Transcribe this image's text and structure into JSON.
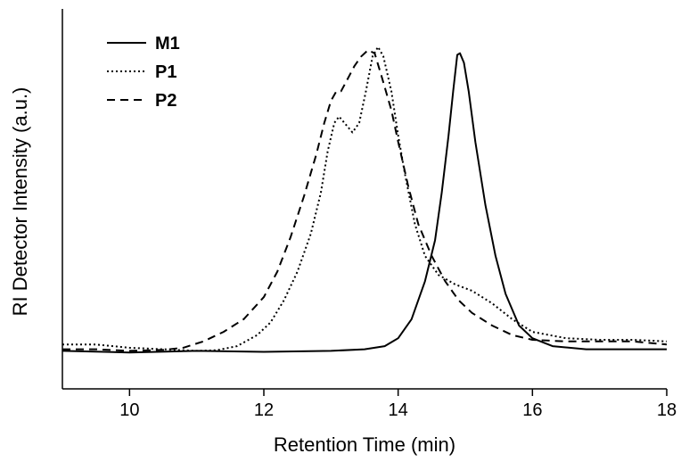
{
  "chart_data": {
    "type": "line",
    "title": "",
    "xlabel": "Retention Time (min)",
    "ylabel": "RI Detector Intensity (a.u.)",
    "xlim": [
      9,
      18
    ],
    "ylim": [
      -0.12,
      1.08
    ],
    "x_ticks": [
      "10",
      "12",
      "14",
      "16",
      "18"
    ],
    "y_ticks": [],
    "grid": false,
    "legend_position": "top-left",
    "series": [
      {
        "name": "M1",
        "style": "solid",
        "color": "#000000",
        "points": [
          [
            9,
            0.0
          ],
          [
            10,
            -0.005
          ],
          [
            11,
            0.0
          ],
          [
            12,
            -0.003
          ],
          [
            13,
            0.0
          ],
          [
            13.5,
            0.005
          ],
          [
            13.8,
            0.015
          ],
          [
            14.0,
            0.04
          ],
          [
            14.2,
            0.1
          ],
          [
            14.4,
            0.22
          ],
          [
            14.55,
            0.35
          ],
          [
            14.65,
            0.5
          ],
          [
            14.75,
            0.68
          ],
          [
            14.82,
            0.82
          ],
          [
            14.88,
            0.935
          ],
          [
            14.92,
            0.94
          ],
          [
            14.98,
            0.91
          ],
          [
            15.05,
            0.82
          ],
          [
            15.15,
            0.66
          ],
          [
            15.3,
            0.46
          ],
          [
            15.45,
            0.3
          ],
          [
            15.6,
            0.18
          ],
          [
            15.8,
            0.08
          ],
          [
            16.0,
            0.04
          ],
          [
            16.3,
            0.015
          ],
          [
            16.8,
            0.005
          ],
          [
            17.5,
            0.005
          ],
          [
            18,
            0.005
          ]
        ]
      },
      {
        "name": "P1",
        "style": "dotted",
        "color": "#000000",
        "points": [
          [
            9,
            0.02
          ],
          [
            9.5,
            0.02
          ],
          [
            10,
            0.01
          ],
          [
            10.5,
            0.005
          ],
          [
            11,
            0.0
          ],
          [
            11.3,
            0.002
          ],
          [
            11.6,
            0.015
          ],
          [
            11.9,
            0.05
          ],
          [
            12.1,
            0.09
          ],
          [
            12.3,
            0.16
          ],
          [
            12.5,
            0.25
          ],
          [
            12.7,
            0.37
          ],
          [
            12.85,
            0.5
          ],
          [
            12.95,
            0.63
          ],
          [
            13.05,
            0.72
          ],
          [
            13.12,
            0.74
          ],
          [
            13.2,
            0.72
          ],
          [
            13.32,
            0.69
          ],
          [
            13.42,
            0.72
          ],
          [
            13.52,
            0.82
          ],
          [
            13.62,
            0.93
          ],
          [
            13.7,
            0.96
          ],
          [
            13.78,
            0.93
          ],
          [
            13.9,
            0.82
          ],
          [
            14.0,
            0.68
          ],
          [
            14.1,
            0.56
          ],
          [
            14.25,
            0.4
          ],
          [
            14.4,
            0.3
          ],
          [
            14.6,
            0.24
          ],
          [
            14.85,
            0.21
          ],
          [
            15.1,
            0.19
          ],
          [
            15.4,
            0.15
          ],
          [
            15.7,
            0.1
          ],
          [
            16.0,
            0.06
          ],
          [
            16.5,
            0.04
          ],
          [
            17.0,
            0.035
          ],
          [
            17.5,
            0.035
          ],
          [
            18,
            0.03
          ]
        ]
      },
      {
        "name": "P2",
        "style": "dashed",
        "color": "#000000",
        "points": [
          [
            9,
            0.005
          ],
          [
            9.5,
            0.005
          ],
          [
            10,
            0.0
          ],
          [
            10.5,
            0.003
          ],
          [
            10.8,
            0.01
          ],
          [
            11.1,
            0.03
          ],
          [
            11.4,
            0.06
          ],
          [
            11.7,
            0.1
          ],
          [
            12.0,
            0.17
          ],
          [
            12.2,
            0.25
          ],
          [
            12.4,
            0.36
          ],
          [
            12.6,
            0.49
          ],
          [
            12.78,
            0.62
          ],
          [
            12.9,
            0.72
          ],
          [
            13.0,
            0.79
          ],
          [
            13.08,
            0.82
          ],
          [
            13.15,
            0.82
          ],
          [
            13.25,
            0.86
          ],
          [
            13.35,
            0.9
          ],
          [
            13.45,
            0.93
          ],
          [
            13.55,
            0.95
          ],
          [
            13.65,
            0.94
          ],
          [
            13.75,
            0.87
          ],
          [
            13.9,
            0.76
          ],
          [
            14.0,
            0.66
          ],
          [
            14.15,
            0.52
          ],
          [
            14.3,
            0.4
          ],
          [
            14.5,
            0.3
          ],
          [
            14.7,
            0.22
          ],
          [
            14.9,
            0.16
          ],
          [
            15.1,
            0.12
          ],
          [
            15.4,
            0.08
          ],
          [
            15.7,
            0.05
          ],
          [
            16.0,
            0.035
          ],
          [
            16.5,
            0.03
          ],
          [
            17.0,
            0.03
          ],
          [
            17.5,
            0.03
          ],
          [
            18,
            0.02
          ]
        ]
      }
    ]
  }
}
